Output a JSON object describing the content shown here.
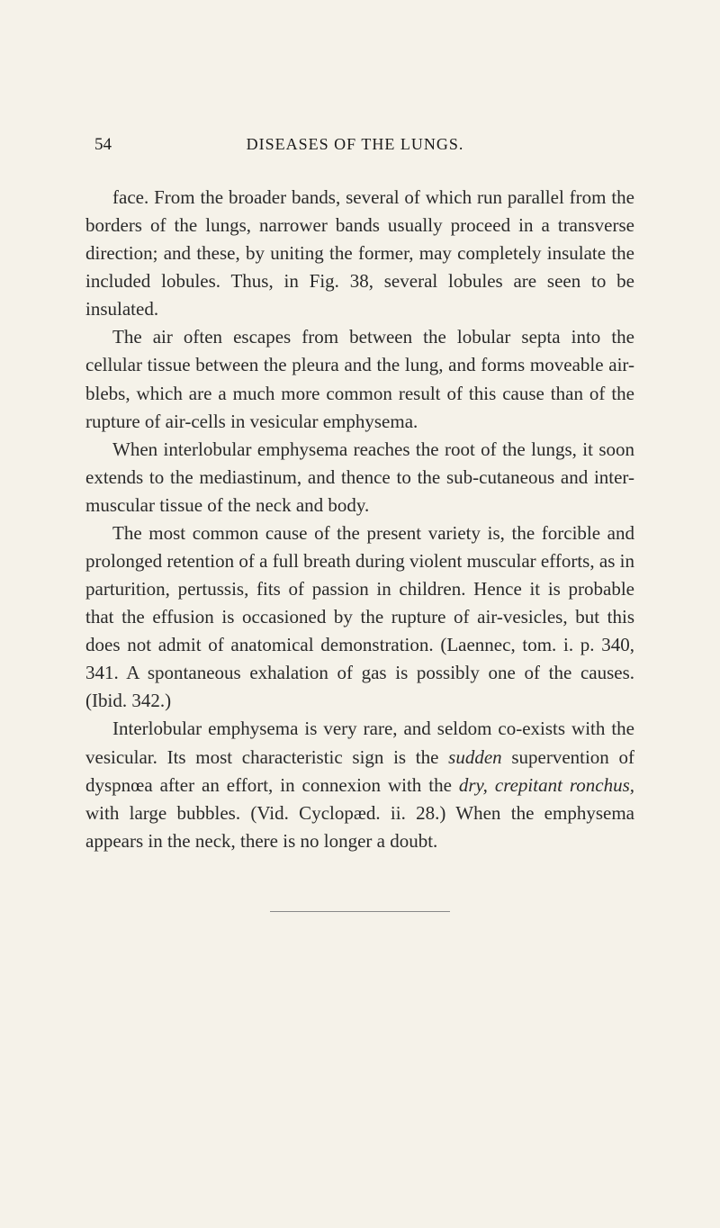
{
  "page": {
    "number": "54",
    "title": "DISEASES OF THE LUNGS.",
    "background_color": "#f5f2e9",
    "text_color": "#2a2a2a",
    "font_family": "Georgia",
    "body_fontsize": 21,
    "line_height": 1.48,
    "text_indent": 30
  },
  "paragraphs": {
    "p1_part1": "face. From the broader bands, several of which run parallel from the borders of the lungs, narrower bands usually proceed in a transverse direction; and these, by uniting the former, may completely insulate the included lobules. Thus, in Fig. 38, several lobules are seen to be insulated.",
    "p2": "The air often escapes from between the lobular septa into the cellular tissue between the pleura and the lung, and forms moveable air-blebs, which are a much more common result of this cause than of the rupture of air-cells in vesicular emphysema.",
    "p3": "When interlobular emphysema reaches the root of the lungs, it soon extends to the mediastinum, and thence to the sub-cutaneous and inter-muscular tissue of the neck and body.",
    "p4": "The most common cause of the present variety is, the forcible and prolonged retention of a full breath during violent muscular efforts, as in parturition, pertussis, fits of passion in children. Hence it is probable that the effusion is occasioned by the rupture of air-vesicles, but this does not admit of anatomical demonstration. (Laennec, tom. i. p. 340, 341. A spontaneous exhalation of gas is possibly one of the causes. (Ibid. 342.)",
    "p5_a": "Interlobular emphysema is very rare, and seldom co-exists with the vesicular. Its most characteristic sign is the ",
    "p5_sudden": "sudden",
    "p5_b": " supervention of dyspnœa after an effort, in connexion with the ",
    "p5_dry": "dry, crepitant ronchus,",
    "p5_c": " with large bubbles. (Vid. Cyclopæd. ii. 28.) When the emphysema appears in the neck, there is no longer a doubt."
  }
}
